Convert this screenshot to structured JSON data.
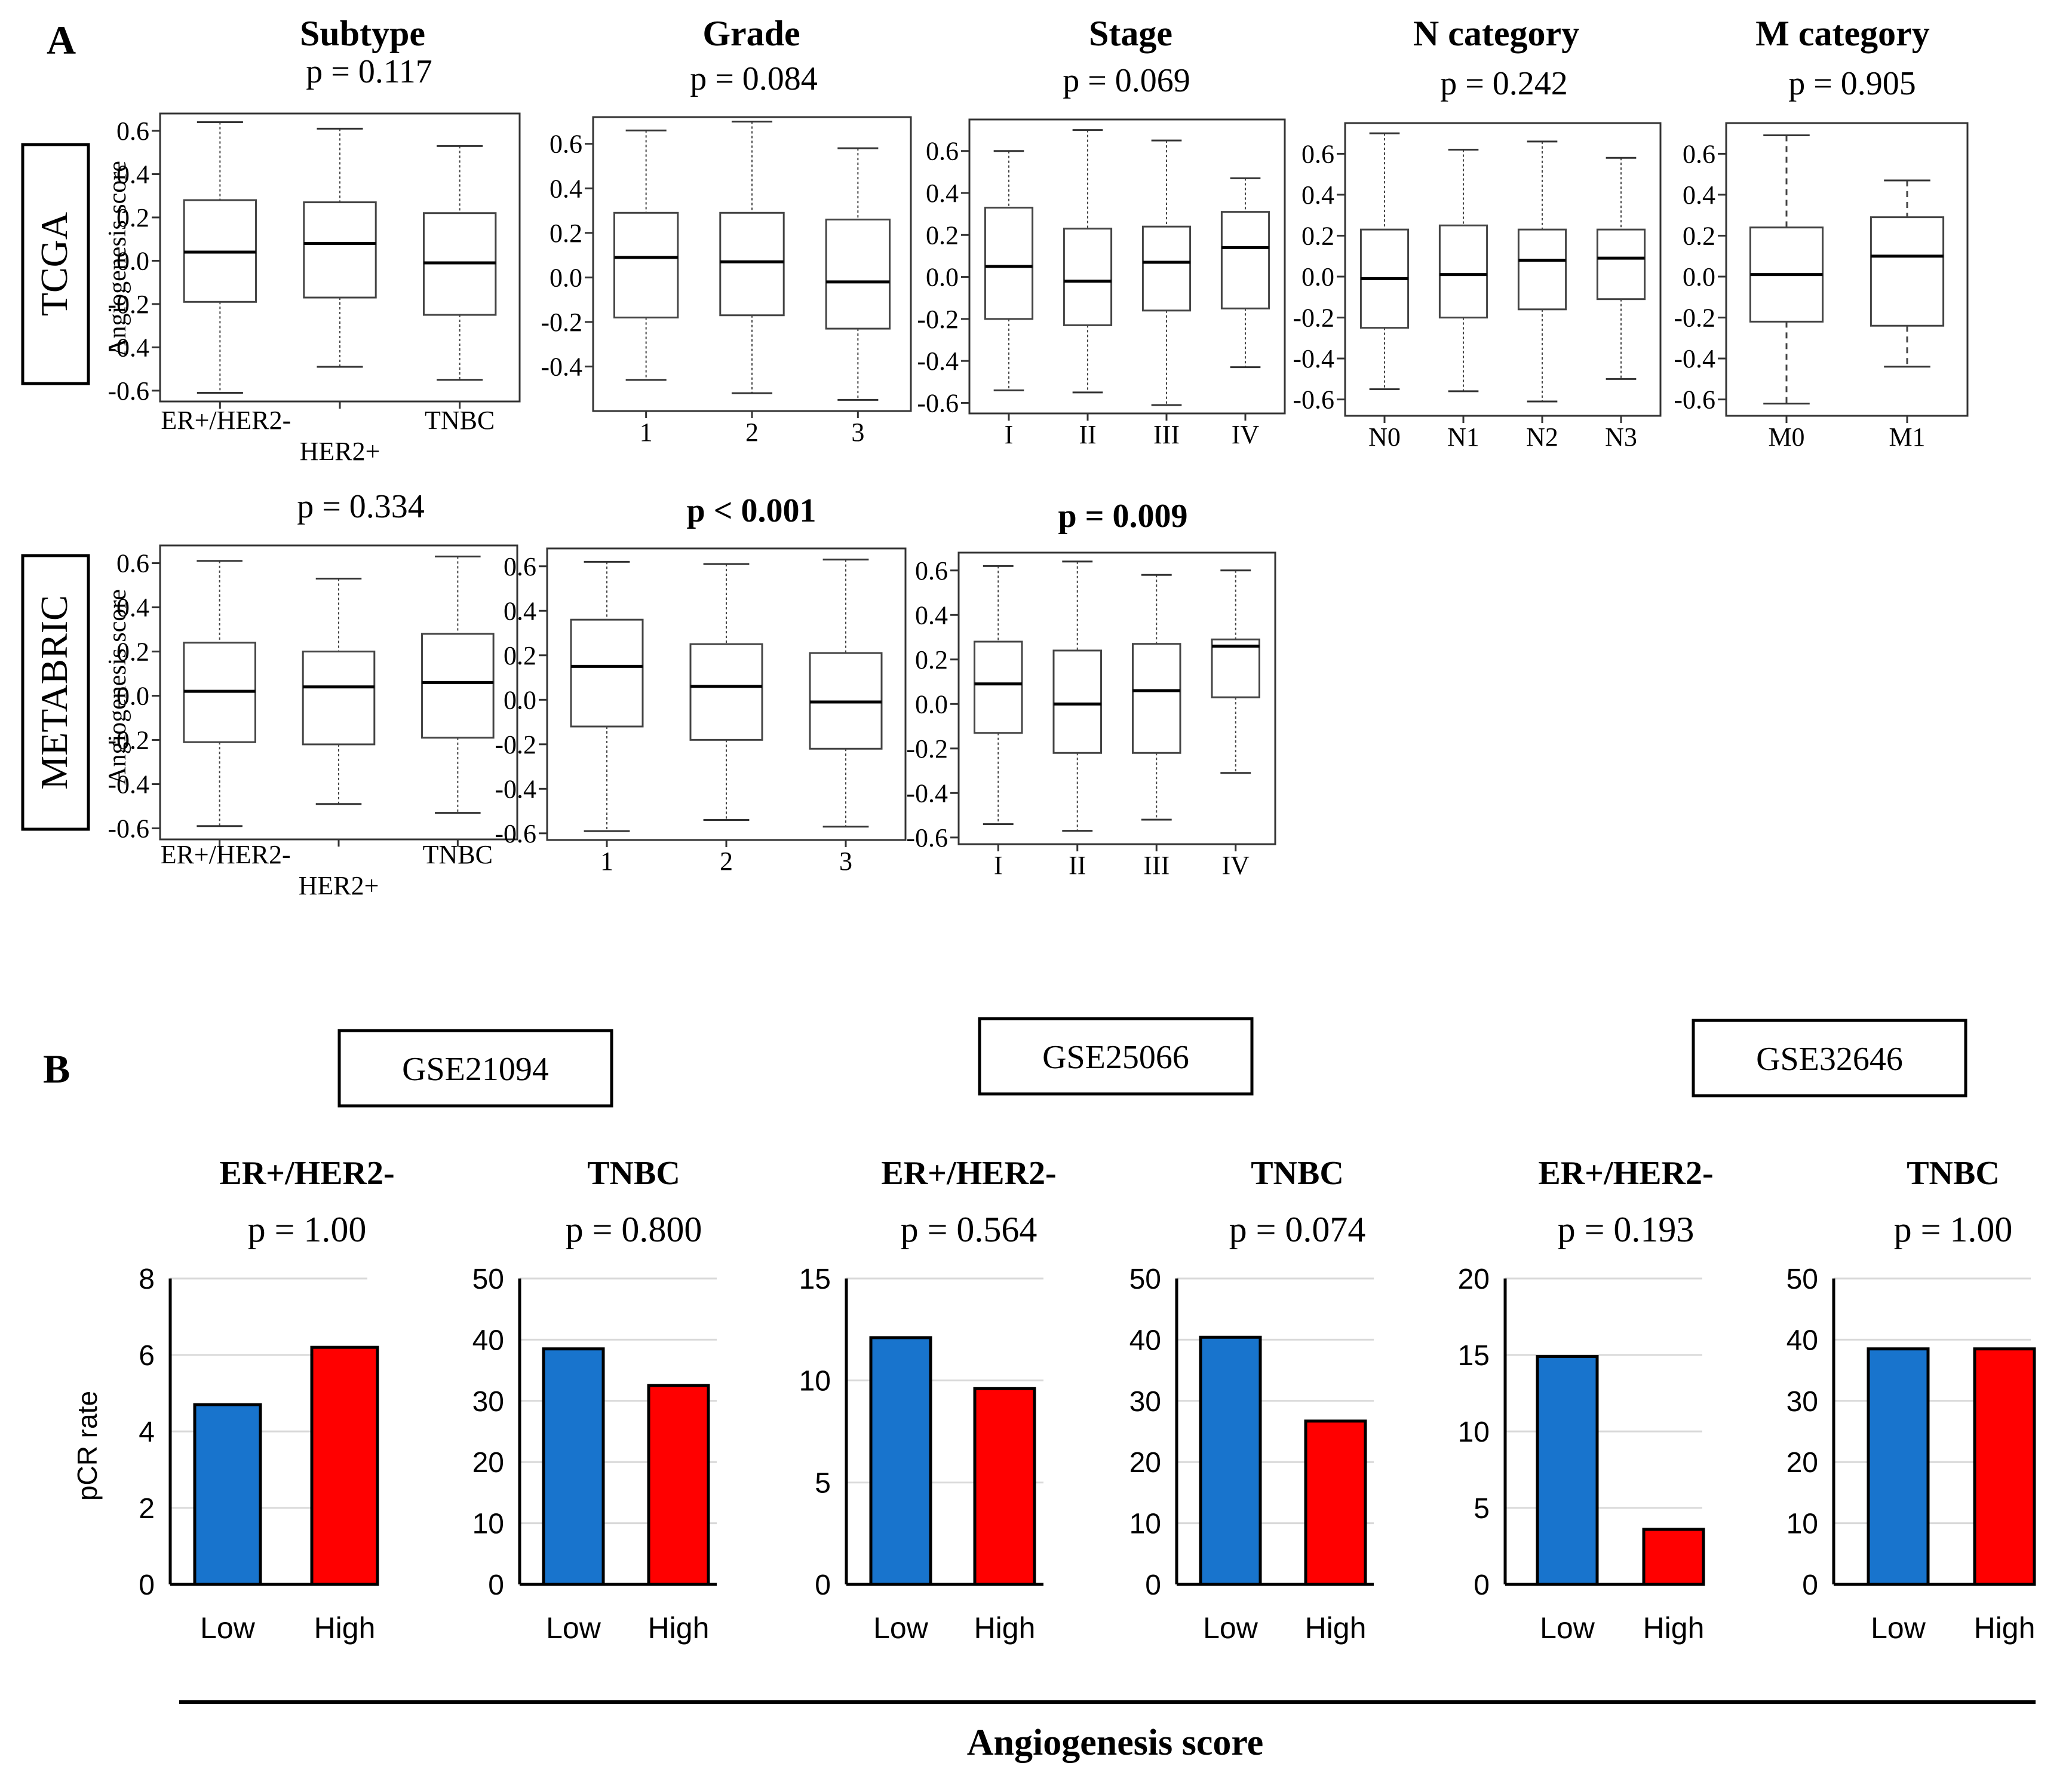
{
  "panel_labels": {
    "a": "A",
    "b": "B"
  },
  "row_labels": {
    "tcga": "TCGA",
    "metabric": "METABRIC"
  },
  "boxplot_ylabel": "Angiogenesis score",
  "column_titles": [
    "Subtype",
    "Grade",
    "Stage",
    "N category",
    "M category"
  ],
  "dataset_labels": [
    "GSE21094",
    "GSE25066",
    "GSE32646"
  ],
  "bar_ylabel": "pCR rate",
  "bar_xlabel": "Angiogenesis score",
  "colors": {
    "low": "#1874cd",
    "high": "#ff0000",
    "axis": "#000000",
    "grid": "#d9d9d9",
    "box": "#555555"
  },
  "chart_data": [
    {
      "type": "box",
      "id": "tcga-subtype",
      "row": "TCGA",
      "p_label": "p = 0.117",
      "p_bold": false,
      "ylim": [
        -0.65,
        0.68
      ],
      "y_ticks": [
        "0.6",
        "0.4",
        "0.2",
        "0.0",
        "-0.2",
        "-0.4",
        "-0.6"
      ],
      "y_tick_values": [
        0.6,
        0.4,
        0.2,
        0.0,
        -0.2,
        -0.4,
        -0.6
      ],
      "categories": [
        {
          "label": "ER+/HER2-",
          "min": -0.61,
          "q1": -0.19,
          "median": 0.04,
          "q3": 0.28,
          "max": 0.64
        },
        {
          "label": "HER2+",
          "min": -0.49,
          "q1": -0.17,
          "median": 0.08,
          "q3": 0.27,
          "max": 0.61
        },
        {
          "label": "TNBC",
          "min": -0.55,
          "q1": -0.25,
          "median": -0.01,
          "q3": 0.22,
          "max": 0.53
        }
      ]
    },
    {
      "type": "box",
      "id": "tcga-grade",
      "row": "TCGA",
      "p_label": "p = 0.084",
      "p_bold": false,
      "ylim": [
        -0.6,
        0.72
      ],
      "y_ticks": [
        "0.6",
        "0.4",
        "0.2",
        "0.0",
        "-0.2",
        "-0.4"
      ],
      "y_tick_values": [
        0.6,
        0.4,
        0.2,
        0.0,
        -0.2,
        -0.4
      ],
      "categories": [
        {
          "label": "1",
          "min": -0.46,
          "q1": -0.18,
          "median": 0.09,
          "q3": 0.29,
          "max": 0.66
        },
        {
          "label": "2",
          "min": -0.52,
          "q1": -0.17,
          "median": 0.07,
          "q3": 0.29,
          "max": 0.7
        },
        {
          "label": "3",
          "min": -0.55,
          "q1": -0.23,
          "median": -0.02,
          "q3": 0.26,
          "max": 0.58
        }
      ]
    },
    {
      "type": "box",
      "id": "tcga-stage",
      "row": "TCGA",
      "p_label": "p = 0.069",
      "p_bold": false,
      "ylim": [
        -0.65,
        0.75
      ],
      "y_ticks": [
        "0.6",
        "0.4",
        "0.2",
        "0.0",
        "-0.2",
        "-0.4",
        "-0.6"
      ],
      "y_tick_values": [
        0.6,
        0.4,
        0.2,
        0.0,
        -0.2,
        -0.4,
        -0.6
      ],
      "categories": [
        {
          "label": "I",
          "min": -0.54,
          "q1": -0.2,
          "median": 0.05,
          "q3": 0.33,
          "max": 0.6
        },
        {
          "label": "II",
          "min": -0.55,
          "q1": -0.23,
          "median": -0.02,
          "q3": 0.23,
          "max": 0.7
        },
        {
          "label": "III",
          "min": -0.61,
          "q1": -0.16,
          "median": 0.07,
          "q3": 0.24,
          "max": 0.65
        },
        {
          "label": "IV",
          "min": -0.43,
          "q1": -0.15,
          "median": 0.14,
          "q3": 0.31,
          "max": 0.47
        }
      ]
    },
    {
      "type": "box",
      "id": "tcga-n",
      "row": "TCGA",
      "p_label": "p = 0.242",
      "p_bold": false,
      "ylim": [
        -0.68,
        0.75
      ],
      "y_ticks": [
        "0.6",
        "0.4",
        "0.2",
        "0.0",
        "-0.2",
        "-0.4",
        "-0.6"
      ],
      "y_tick_values": [
        0.6,
        0.4,
        0.2,
        0.0,
        -0.2,
        -0.4,
        -0.6
      ],
      "categories": [
        {
          "label": "N0",
          "min": -0.55,
          "q1": -0.25,
          "median": -0.01,
          "q3": 0.23,
          "max": 0.7
        },
        {
          "label": "N1",
          "min": -0.56,
          "q1": -0.2,
          "median": 0.01,
          "q3": 0.25,
          "max": 0.62
        },
        {
          "label": "N2",
          "min": -0.61,
          "q1": -0.16,
          "median": 0.08,
          "q3": 0.23,
          "max": 0.66
        },
        {
          "label": "N3",
          "min": -0.5,
          "q1": -0.11,
          "median": 0.09,
          "q3": 0.23,
          "max": 0.58
        }
      ]
    },
    {
      "type": "box",
      "id": "tcga-m",
      "row": "TCGA",
      "p_label": "p = 0.905",
      "p_bold": false,
      "ylim": [
        -0.68,
        0.75
      ],
      "y_ticks": [
        "0.6",
        "0.4",
        "0.2",
        "0.0",
        "-0.2",
        "-0.4",
        "-0.6"
      ],
      "y_tick_values": [
        0.6,
        0.4,
        0.2,
        0.0,
        -0.2,
        -0.4,
        -0.6
      ],
      "categories": [
        {
          "label": "M0",
          "min": -0.62,
          "q1": -0.22,
          "median": 0.01,
          "q3": 0.24,
          "max": 0.69
        },
        {
          "label": "M1",
          "min": -0.44,
          "q1": -0.24,
          "median": 0.1,
          "q3": 0.29,
          "max": 0.47
        }
      ]
    },
    {
      "type": "box",
      "id": "metabric-subtype",
      "row": "METABRIC",
      "p_label": "p = 0.334",
      "p_bold": false,
      "ylim": [
        -0.65,
        0.68
      ],
      "y_ticks": [
        "0.6",
        "0.4",
        "0.2",
        "0.0",
        "-0.2",
        "-0.4",
        "-0.6"
      ],
      "y_tick_values": [
        0.6,
        0.4,
        0.2,
        0.0,
        -0.2,
        -0.4,
        -0.6
      ],
      "categories": [
        {
          "label": "ER+/HER2-",
          "min": -0.59,
          "q1": -0.21,
          "median": 0.02,
          "q3": 0.24,
          "max": 0.61
        },
        {
          "label": "HER2+",
          "min": -0.49,
          "q1": -0.22,
          "median": 0.04,
          "q3": 0.2,
          "max": 0.53
        },
        {
          "label": "TNBC",
          "min": -0.53,
          "q1": -0.19,
          "median": 0.06,
          "q3": 0.28,
          "max": 0.63
        }
      ]
    },
    {
      "type": "box",
      "id": "metabric-grade",
      "row": "METABRIC",
      "p_label": "p < 0.001",
      "p_bold": true,
      "ylim": [
        -0.63,
        0.68
      ],
      "y_ticks": [
        "0.6",
        "0.4",
        "0.2",
        "0.0",
        "-0.2",
        "-0.4",
        "-0.6"
      ],
      "y_tick_values": [
        0.6,
        0.4,
        0.2,
        0.0,
        -0.2,
        -0.4,
        -0.6
      ],
      "categories": [
        {
          "label": "1",
          "min": -0.59,
          "q1": -0.12,
          "median": 0.15,
          "q3": 0.36,
          "max": 0.62
        },
        {
          "label": "2",
          "min": -0.54,
          "q1": -0.18,
          "median": 0.06,
          "q3": 0.25,
          "max": 0.61
        },
        {
          "label": "3",
          "min": -0.57,
          "q1": -0.22,
          "median": -0.01,
          "q3": 0.21,
          "max": 0.63
        }
      ]
    },
    {
      "type": "box",
      "id": "metabric-stage",
      "row": "METABRIC",
      "p_label": "p = 0.009",
      "p_bold": true,
      "ylim": [
        -0.63,
        0.68
      ],
      "y_ticks": [
        "0.6",
        "0.4",
        "0.2",
        "0.0",
        "-0.2",
        "-0.4",
        "-0.6"
      ],
      "y_tick_values": [
        0.6,
        0.4,
        0.2,
        0.0,
        -0.2,
        -0.4,
        -0.6
      ],
      "categories": [
        {
          "label": "I",
          "min": -0.54,
          "q1": -0.13,
          "median": 0.09,
          "q3": 0.28,
          "max": 0.62
        },
        {
          "label": "II",
          "min": -0.57,
          "q1": -0.22,
          "median": 0.0,
          "q3": 0.24,
          "max": 0.64
        },
        {
          "label": "III",
          "min": -0.52,
          "q1": -0.22,
          "median": 0.06,
          "q3": 0.27,
          "max": 0.58
        },
        {
          "label": "IV",
          "min": -0.31,
          "q1": 0.03,
          "median": 0.26,
          "q3": 0.29,
          "max": 0.6
        }
      ]
    },
    {
      "type": "bar",
      "id": "gse21094-erher2",
      "dataset": "GSE21094",
      "title": "ER+/HER2-",
      "p_label": "p = 1.00",
      "ylim": [
        0,
        8
      ],
      "y_ticks": [
        "8",
        "6",
        "4",
        "2",
        "0"
      ],
      "y_tick_values": [
        8,
        6,
        4,
        2,
        0
      ],
      "categories": [
        "Low",
        "High"
      ],
      "values": [
        4.7,
        6.2
      ]
    },
    {
      "type": "bar",
      "id": "gse21094-tnbc",
      "dataset": "GSE21094",
      "title": "TNBC",
      "p_label": "p = 0.800",
      "ylim": [
        0,
        50
      ],
      "y_ticks": [
        "50",
        "40",
        "30",
        "20",
        "10",
        "0"
      ],
      "y_tick_values": [
        50,
        40,
        30,
        20,
        10,
        0
      ],
      "categories": [
        "Low",
        "High"
      ],
      "values": [
        38.5,
        32.5
      ]
    },
    {
      "type": "bar",
      "id": "gse25066-erher2",
      "dataset": "GSE25066",
      "title": "ER+/HER2-",
      "p_label": "p = 0.564",
      "ylim": [
        0,
        15
      ],
      "y_ticks": [
        "15",
        "10",
        "5",
        "0"
      ],
      "y_tick_values": [
        15,
        10,
        5,
        0
      ],
      "categories": [
        "Low",
        "High"
      ],
      "values": [
        12.1,
        9.6
      ]
    },
    {
      "type": "bar",
      "id": "gse25066-tnbc",
      "dataset": "GSE25066",
      "title": "TNBC",
      "p_label": "p = 0.074",
      "ylim": [
        0,
        50
      ],
      "y_ticks": [
        "50",
        "40",
        "30",
        "20",
        "10",
        "0"
      ],
      "y_tick_values": [
        50,
        40,
        30,
        20,
        10,
        0
      ],
      "categories": [
        "Low",
        "High"
      ],
      "values": [
        40.4,
        26.7
      ]
    },
    {
      "type": "bar",
      "id": "gse32646-erher2",
      "dataset": "GSE32646",
      "title": "ER+/HER2-",
      "p_label": "p = 0.193",
      "ylim": [
        0,
        20
      ],
      "y_ticks": [
        "20",
        "15",
        "10",
        "5",
        "0"
      ],
      "y_tick_values": [
        20,
        15,
        10,
        5,
        0
      ],
      "categories": [
        "Low",
        "High"
      ],
      "values": [
        14.9,
        3.6
      ]
    },
    {
      "type": "bar",
      "id": "gse32646-tnbc",
      "dataset": "GSE32646",
      "title": "TNBC",
      "p_label": "p = 1.00",
      "ylim": [
        0,
        50
      ],
      "y_ticks": [
        "50",
        "40",
        "30",
        "20",
        "10",
        "0"
      ],
      "y_tick_values": [
        50,
        40,
        30,
        20,
        10,
        0
      ],
      "categories": [
        "Low",
        "High"
      ],
      "values": [
        38.5,
        38.5
      ]
    }
  ]
}
